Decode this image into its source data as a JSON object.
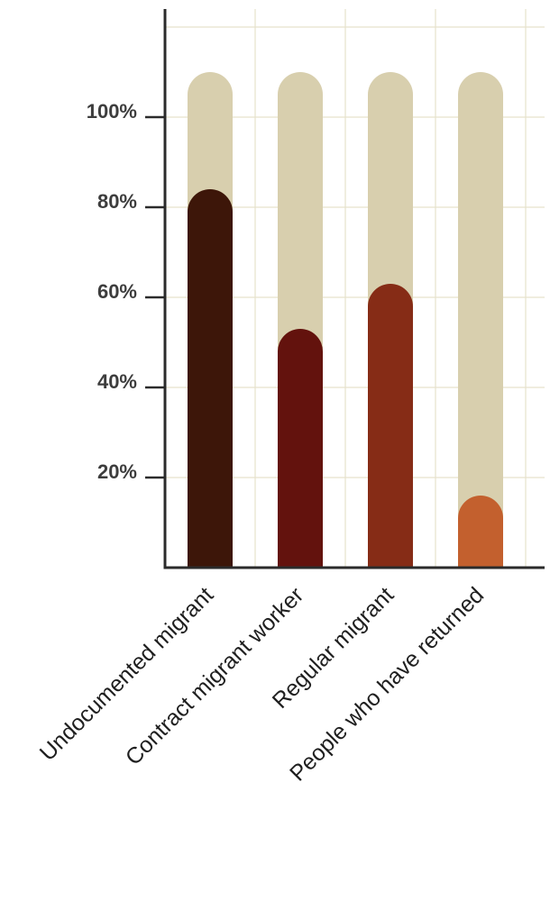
{
  "chart_data": {
    "type": "bar",
    "categories": [
      "Undocumented migrant",
      "Contract migrant worker",
      "Regular migrant",
      "People who have returned"
    ],
    "values": [
      84,
      53,
      63,
      16
    ],
    "background_value": 110,
    "ylim": [
      0,
      120
    ],
    "yticks": [
      20,
      40,
      60,
      80,
      100
    ],
    "ytick_labels": [
      "20%",
      "40%",
      "60%",
      "80%",
      "100%"
    ],
    "grid": true,
    "colors": {
      "background_bar": "#d8cfae",
      "bars": [
        "#3d1609",
        "#63120d",
        "#862c16",
        "#c3602e"
      ],
      "gridline": "#e6e2cc",
      "axis": "#2b2b2b"
    }
  }
}
